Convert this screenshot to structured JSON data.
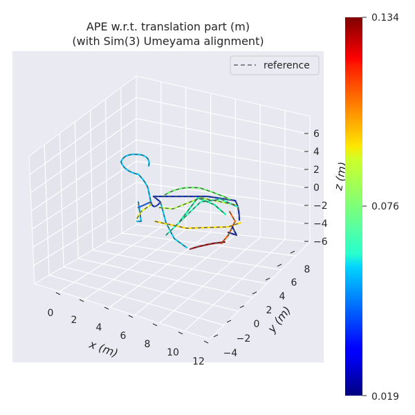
{
  "chart_data": {
    "type": "3d-trajectory",
    "title_line1": "APE w.r.t. translation part (m)",
    "title_line2": "(with Sim(3) Umeyama alignment)",
    "xlabel": "x (m)",
    "ylabel": "y (m)",
    "zlabel": "z (m)",
    "x_ticks": [
      "0",
      "2",
      "4",
      "6",
      "8",
      "10",
      "12"
    ],
    "y_ticks": [
      "−4",
      "−2",
      "0",
      "2",
      "4",
      "6",
      "8"
    ],
    "z_ticks": [
      "6",
      "4",
      "2",
      "0",
      "−2",
      "−4",
      "−6"
    ],
    "legend": [
      {
        "label": "reference",
        "style": "dashed",
        "color": "#666666"
      }
    ],
    "colorbar": {
      "colormap": "jet",
      "min": "0.019",
      "mid": "0.076",
      "max": "0.134"
    },
    "background": "#eaeaf2",
    "grid": true
  }
}
